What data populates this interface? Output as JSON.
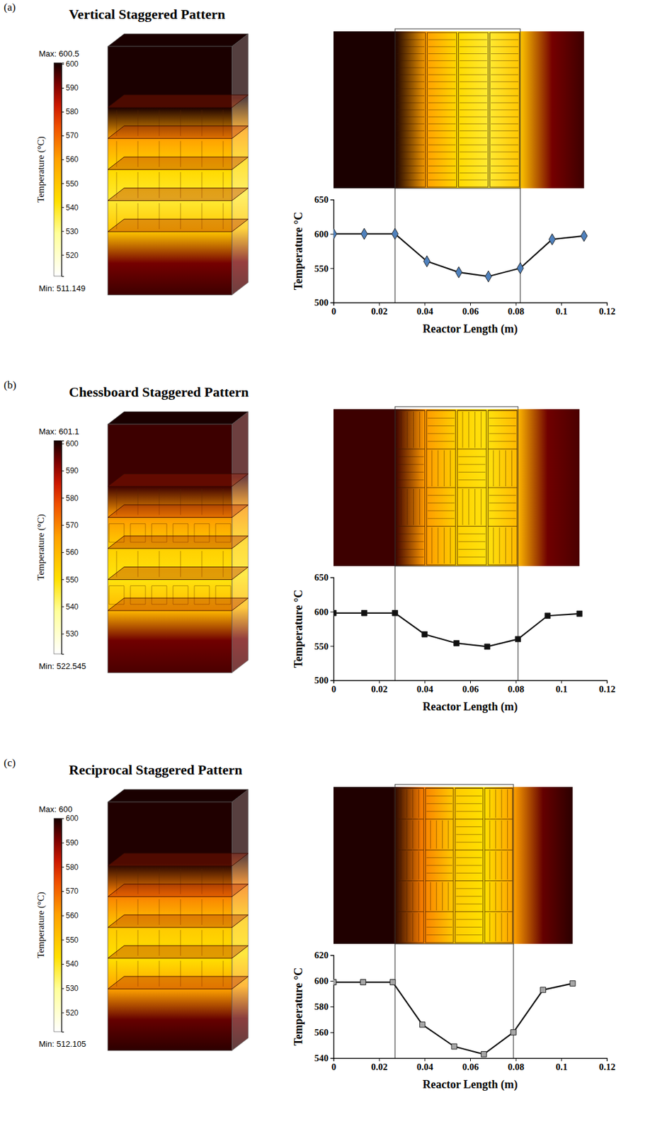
{
  "chart_data": [
    {
      "type": "line",
      "panel": "(a)",
      "title": "Vertical Staggered Pattern",
      "xlabel": "Reactor Length  (m)",
      "ylabel": "Temperature  °C",
      "x": [
        0,
        0.0135,
        0.027,
        0.041,
        0.055,
        0.068,
        0.082,
        0.096,
        0.11
      ],
      "series": [
        {
          "color": "#4f81bd",
          "marker": "diamond",
          "values": [
            600,
            600,
            600,
            560,
            544,
            538,
            550,
            592,
            597
          ]
        }
      ],
      "xlim": [
        0,
        0.12
      ],
      "xticks": [
        0,
        0.02,
        0.04,
        0.06,
        0.08,
        0.1,
        0.12
      ],
      "ylim": [
        500,
        650
      ],
      "yticks": [
        500,
        550,
        600,
        650
      ],
      "reactor_bounds": [
        0.027,
        0.082
      ],
      "colorbar": {
        "title": "Temperature (°C)",
        "range": [
          511.149,
          600.5
        ],
        "ticks": [
          520,
          530,
          540,
          550,
          560,
          570,
          580,
          590,
          600
        ],
        "max_label": "Max: 600.5",
        "min_label": "Min: 511.149"
      }
    },
    {
      "type": "line",
      "panel": "(b)",
      "title": "Chessboard  Staggered Pattern",
      "xlabel": "Reactor Length  (m)",
      "ylabel": "Temperature  °C",
      "x": [
        0,
        0.0135,
        0.027,
        0.04,
        0.054,
        0.0675,
        0.081,
        0.094,
        0.108
      ],
      "series": [
        {
          "color": "#111111",
          "marker": "square",
          "values": [
            598,
            598,
            598,
            567,
            554,
            549,
            560,
            594,
            597
          ]
        }
      ],
      "xlim": [
        0,
        0.12
      ],
      "xticks": [
        0,
        0.02,
        0.04,
        0.06,
        0.08,
        0.1,
        0.12
      ],
      "ylim": [
        500,
        650
      ],
      "yticks": [
        500,
        550,
        600,
        650
      ],
      "reactor_bounds": [
        0.027,
        0.081
      ],
      "colorbar": {
        "title": "Temperature (°C)",
        "range": [
          522.545,
          601.1
        ],
        "ticks": [
          530,
          540,
          550,
          560,
          570,
          580,
          590,
          600
        ],
        "max_label": "Max: 601.1",
        "min_label": "Min: 522.545"
      }
    },
    {
      "type": "line",
      "panel": "(c)",
      "title": "Reciprocal Staggered Pattern",
      "xlabel": "Reactor Length  (m)",
      "ylabel": "Temperature °C",
      "x": [
        0,
        0.013,
        0.026,
        0.039,
        0.053,
        0.066,
        0.079,
        0.092,
        0.105
      ],
      "series": [
        {
          "color": "#a6a6a6",
          "marker": "square",
          "values": [
            599,
            599,
            599,
            566,
            549,
            543,
            560,
            593,
            598
          ]
        }
      ],
      "xlim": [
        0,
        0.12
      ],
      "xticks": [
        0,
        0.02,
        0.04,
        0.06,
        0.08,
        0.1,
        0.12
      ],
      "ylim": [
        540,
        620
      ],
      "yticks": [
        540,
        560,
        580,
        600,
        620
      ],
      "reactor_bounds": [
        0.027,
        0.079
      ],
      "colorbar": {
        "title": "Temperature (°C)",
        "range": [
          512.105,
          600
        ],
        "ticks": [
          520,
          530,
          540,
          550,
          560,
          570,
          580,
          590,
          600
        ],
        "max_label": "Max: 600",
        "min_label": "Min: 512.105"
      }
    }
  ]
}
